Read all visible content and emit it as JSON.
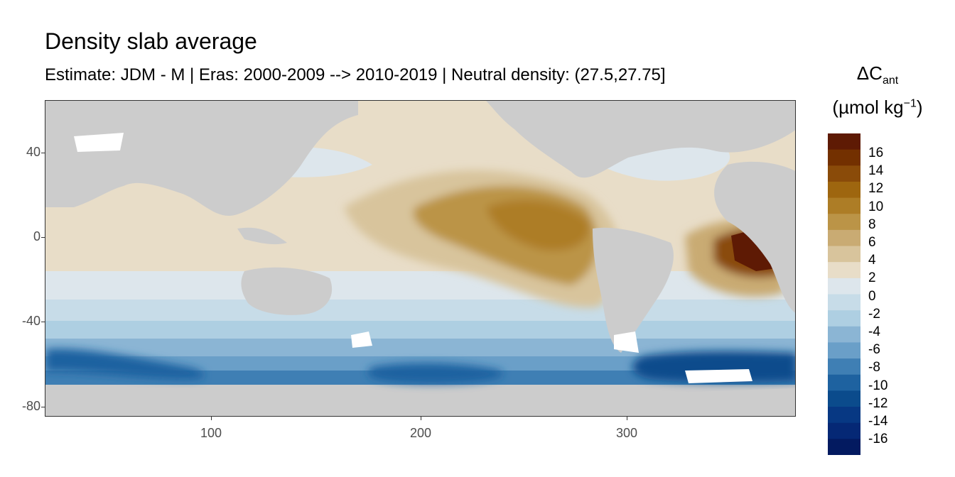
{
  "chart_data": {
    "type": "heatmap",
    "title": "Density slab average",
    "subtitle": "Estimate: JDM - M | Eras: 2000-2009 --> 2010-2019 | Neutral density: (27.5,27.75]",
    "x_ticks": [
      "100",
      "200",
      "300"
    ],
    "y_ticks": [
      "40",
      "0",
      "-40",
      "-80"
    ],
    "xlim": [
      20,
      380
    ],
    "ylim": [
      -85,
      65
    ],
    "legend": {
      "title_main": "ΔC",
      "title_sub": "ant",
      "unit_prefix": "(µmol kg",
      "unit_sup": "−1",
      "unit_suffix": ")",
      "placement": "right",
      "labels": [
        "16",
        "14",
        "12",
        "10",
        "8",
        "6",
        "4",
        "2",
        "0",
        "-2",
        "-4",
        "-6",
        "-8",
        "-10",
        "-12",
        "-14",
        "-16"
      ],
      "colors": [
        "#5e1a04",
        "#733000",
        "#8a4b09",
        "#9e660f",
        "#ad7d26",
        "#bb9447",
        "#c9ab73",
        "#d8c49c",
        "#e8ddc8",
        "#dde6ec",
        "#c7dce8",
        "#aecfe2",
        "#8bb5d4",
        "#6a9fc8",
        "#3f7fb4",
        "#1e62a0",
        "#0b4b8c",
        "#073883",
        "#052875",
        "#031a60"
      ]
    }
  }
}
